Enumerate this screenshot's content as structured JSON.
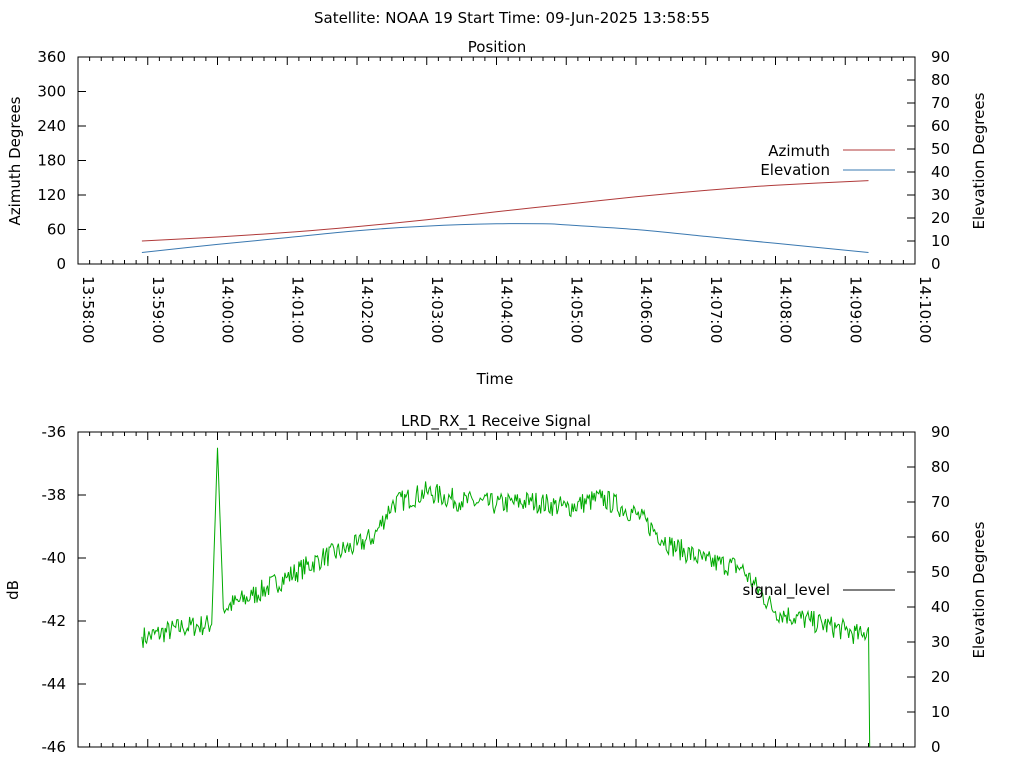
{
  "header": {
    "title": "Satellite: NOAA 19    Start Time: 09-Jun-2025 13:58:55"
  },
  "colors": {
    "azimuth": "#b03a3a",
    "elevation": "#3a78b0",
    "signal": "#00aa00",
    "axis": "#000000",
    "legend_signal_line": "#000000"
  },
  "chart_data": [
    {
      "type": "line",
      "title": "Position",
      "xlabel": "Time",
      "ylabel": "Azimuth Degrees",
      "y2label": "Elevation Degrees",
      "x_range": [
        "13:58:00",
        "14:10:00"
      ],
      "x_ticks": [
        "13:58:00",
        "13:59:00",
        "14:00:00",
        "14:01:00",
        "14:02:00",
        "14:03:00",
        "14:04:00",
        "14:05:00",
        "14:06:00",
        "14:07:00",
        "14:08:00",
        "14:09:00",
        "14:10:00"
      ],
      "ylim": [
        0,
        360
      ],
      "y_ticks": [
        "0",
        "60",
        "120",
        "180",
        "240",
        "300",
        "360"
      ],
      "y2lim": [
        0,
        90
      ],
      "y2_ticks": [
        "0",
        "10",
        "20",
        "30",
        "40",
        "50",
        "60",
        "70",
        "80",
        "90"
      ],
      "legend_position": "right",
      "series": [
        {
          "name": "Azimuth",
          "axis": "y",
          "x": [
            "13:58:55",
            "14:00:00",
            "14:01:00",
            "14:02:00",
            "14:03:00",
            "14:04:00",
            "14:05:00",
            "14:06:00",
            "14:07:00",
            "14:08:00",
            "14:09:20"
          ],
          "values": [
            40,
            47,
            55,
            65,
            77,
            91,
            104,
            117,
            128,
            137,
            145
          ]
        },
        {
          "name": "Elevation",
          "axis": "y2",
          "x": [
            "13:58:55",
            "14:00:00",
            "14:01:00",
            "14:02:00",
            "14:03:00",
            "14:04:00",
            "14:04:40",
            "14:05:00",
            "14:06:00",
            "14:07:00",
            "14:08:00",
            "14:09:20"
          ],
          "values": [
            5,
            8.5,
            11.5,
            14.5,
            16.5,
            17.5,
            17.5,
            17,
            15,
            12,
            9,
            5
          ]
        }
      ]
    },
    {
      "type": "line",
      "title": "LRD_RX_1 Receive Signal",
      "ylabel": "dB",
      "y2label": "Elevation Degrees",
      "x_range": [
        "13:58:00",
        "14:10:00"
      ],
      "ylim": [
        -46,
        -36
      ],
      "y_ticks": [
        "-46",
        "-44",
        "-42",
        "-40",
        "-38",
        "-36"
      ],
      "y2lim": [
        0,
        90
      ],
      "y2_ticks": [
        "0",
        "10",
        "20",
        "30",
        "40",
        "50",
        "60",
        "70",
        "80",
        "90"
      ],
      "legend_position": "right",
      "series": [
        {
          "name": "signal_level",
          "x": [
            "13:58:55",
            "13:59:00",
            "13:59:30",
            "13:59:55",
            "14:00:00",
            "14:00:05",
            "14:00:30",
            "14:01:00",
            "14:01:30",
            "14:02:00",
            "14:02:15",
            "14:02:30",
            "14:03:00",
            "14:03:30",
            "14:04:00",
            "14:04:30",
            "14:05:00",
            "14:05:30",
            "14:06:00",
            "14:06:30",
            "14:07:00",
            "14:07:30",
            "14:08:00",
            "14:08:30",
            "14:09:00",
            "14:09:15",
            "14:09:20",
            "14:09:21"
          ],
          "values": [
            -42.5,
            -42.5,
            -42.2,
            -42.1,
            -36.5,
            -41.6,
            -41.2,
            -40.6,
            -40.0,
            -39.6,
            -39.3,
            -38.3,
            -37.9,
            -38.2,
            -38.3,
            -38.2,
            -38.4,
            -38.1,
            -38.6,
            -39.6,
            -40.1,
            -40.3,
            -41.7,
            -42.0,
            -42.3,
            -42.5,
            -42.2,
            -46.0
          ]
        }
      ]
    }
  ]
}
